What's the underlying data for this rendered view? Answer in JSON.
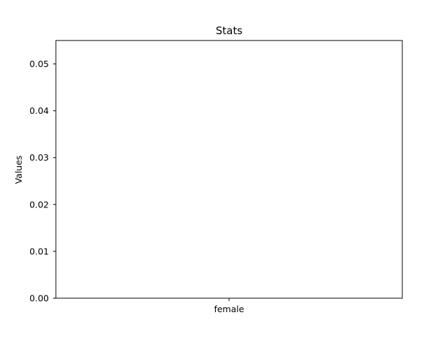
{
  "chart_data": {
    "type": "bar",
    "title": "Stats",
    "xlabel": "",
    "ylabel": "Values",
    "categories": [
      "female"
    ],
    "values": [
      0
    ],
    "ylim": [
      0,
      0.055
    ],
    "yticks": [
      0.0,
      0.01,
      0.02,
      0.03,
      0.04,
      0.05
    ],
    "ytick_labels": [
      "0.00",
      "0.01",
      "0.02",
      "0.03",
      "0.04",
      "0.05"
    ],
    "grid": false,
    "legend": "none",
    "colors": {
      "bar": "#1f77b4",
      "axes": "#000000",
      "background": "#ffffff"
    }
  }
}
